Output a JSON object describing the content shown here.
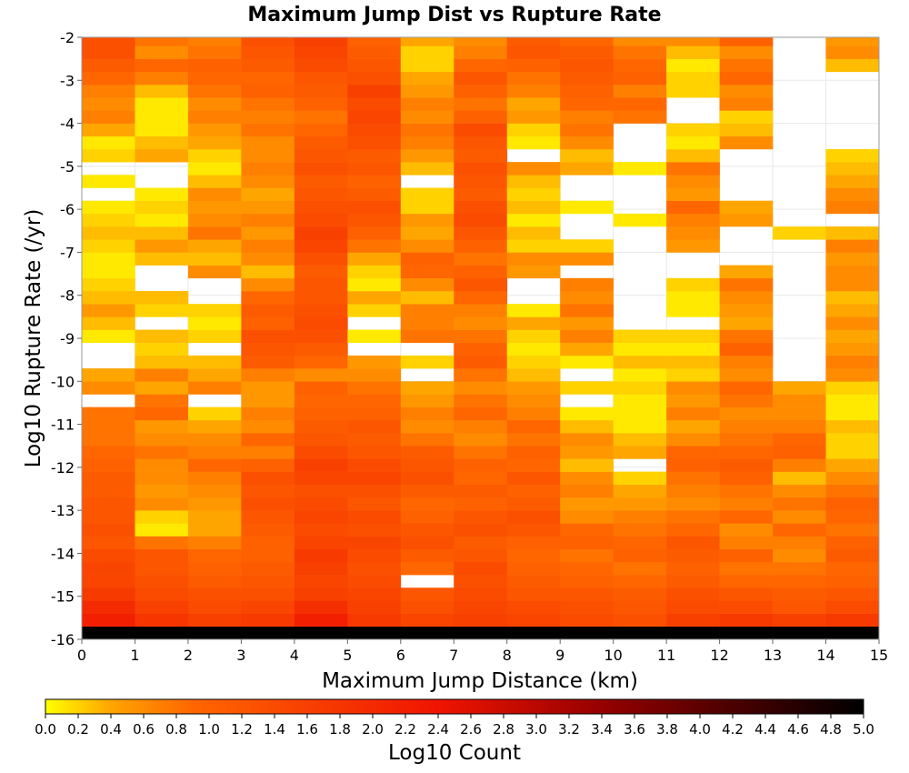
{
  "chart_data": {
    "type": "heatmap",
    "title": "Maximum Jump Dist vs Rupture Rate",
    "xlabel": "Maximum Jump Distance (km)",
    "ylabel": "Log10 Rupture Rate (/yr)",
    "xlim": [
      0,
      15
    ],
    "ylim": [
      -16,
      -2
    ],
    "x_ticks": [
      "0",
      "1",
      "2",
      "3",
      "4",
      "5",
      "6",
      "7",
      "8",
      "9",
      "10",
      "11",
      "12",
      "13",
      "14",
      "15"
    ],
    "y_ticks": [
      "-2",
      "-3",
      "-4",
      "-5",
      "-6",
      "-7",
      "-8",
      "-9",
      "-10",
      "-11",
      "-12",
      "-13",
      "-14",
      "-15",
      "-16"
    ],
    "x_bin_width": 1,
    "y_bin_height": 0.3,
    "y_bins_start": -16,
    "colorbar": {
      "label": "Log10 Count",
      "range": [
        0,
        5
      ],
      "ticks": [
        "0.0",
        "0.2",
        "0.4",
        "0.6",
        "0.8",
        "1.0",
        "1.2",
        "1.4",
        "1.6",
        "1.8",
        "2.0",
        "2.2",
        "2.4",
        "2.6",
        "2.8",
        "3.0",
        "3.2",
        "3.4",
        "3.6",
        "3.8",
        "4.0",
        "4.2",
        "4.4",
        "4.6",
        "4.8",
        "5.0"
      ]
    },
    "grid": true,
    "columns": [
      [
        5.0,
        2.2,
        2.0,
        1.7,
        1.5,
        1.5,
        1.4,
        1.2,
        1.3,
        1.2,
        1.2,
        1.1,
        1.1,
        1.0,
        0.9,
        0.8,
        0.8,
        0.8,
        null,
        0.6,
        0.4,
        null,
        null,
        0.1,
        0.3,
        0.5,
        0.3,
        0.2,
        0.1,
        0.1,
        0.2,
        0.3,
        0.2,
        0.1,
        null,
        0.1,
        null,
        0.2,
        0.1,
        0.4,
        0.7,
        0.6,
        0.7,
        0.9,
        1.1,
        1.3,
        1.3,
        1.2,
        1.3,
        1.4,
        1.2,
        1.3,
        1.1,
        0.9,
        0.6,
        0.4,
        0.3
      ],
      [
        5.0,
        1.8,
        1.6,
        1.4,
        1.3,
        1.2,
        1.2,
        0.8,
        0.1,
        0.2,
        0.6,
        0.5,
        0.6,
        0.6,
        0.8,
        0.6,
        0.5,
        0.9,
        0.8,
        0.4,
        0.7,
        0.3,
        0.2,
        0.3,
        null,
        0.2,
        0.3,
        null,
        null,
        0.3,
        0.5,
        0.3,
        0.1,
        0.2,
        0.1,
        null,
        null,
        0.4,
        0.3,
        0.1,
        0.1,
        0.1,
        0.3,
        0.7,
        0.9,
        0.6,
        0.8,
        0.8,
        0.9,
        1.0,
        0.7,
        0.9,
        0.8,
        0.9,
        0.7,
        0.6,
        0.6
      ],
      [
        5.0,
        1.6,
        1.4,
        1.3,
        1.1,
        1.0,
        0.9,
        0.7,
        0.4,
        0.4,
        0.5,
        0.6,
        0.7,
        0.9,
        0.7,
        0.6,
        0.4,
        0.2,
        null,
        0.7,
        0.4,
        0.3,
        null,
        0.2,
        0.1,
        0.2,
        null,
        null,
        0.6,
        0.3,
        0.4,
        0.8,
        0.6,
        0.5,
        0.6,
        0.3,
        0.1,
        0.2,
        0.4,
        0.5,
        0.7,
        0.6,
        0.8,
        0.9,
        1.0,
        0.8,
        0.7,
        0.9,
        1.0,
        1.1,
        0.9,
        0.8,
        1.0,
        1.0,
        0.7,
        0.7,
        0.7
      ],
      [
        5.0,
        1.7,
        1.5,
        1.3,
        1.2,
        1.1,
        1.0,
        1.0,
        1.1,
        1.2,
        1.3,
        1.2,
        1.3,
        1.0,
        0.7,
        0.9,
        0.6,
        0.7,
        0.5,
        0.5,
        0.7,
        1.1,
        1.2,
        1.3,
        1.0,
        1.1,
        0.9,
        0.6,
        0.3,
        0.6,
        0.7,
        0.5,
        0.7,
        0.5,
        0.4,
        0.6,
        0.7,
        0.6,
        0.6,
        0.8,
        0.7,
        0.8,
        1.0,
        0.9,
        1.1,
        1.2,
        1.3,
        1.4,
        1.2,
        1.2,
        1.3,
        1.0,
        1.1,
        1.2,
        0.8,
        0.8,
        0.7
      ],
      [
        5.0,
        2.2,
        1.9,
        1.6,
        1.5,
        1.6,
        1.7,
        1.5,
        1.4,
        1.5,
        1.4,
        1.3,
        1.5,
        1.6,
        1.4,
        1.2,
        1.1,
        1.0,
        0.9,
        1.0,
        0.6,
        0.9,
        1.1,
        1.3,
        1.4,
        1.3,
        1.2,
        1.2,
        1.1,
        1.3,
        1.5,
        1.6,
        1.4,
        1.3,
        1.2,
        1.1,
        1.3,
        1.2,
        1.1,
        0.9,
        0.8,
        1.0,
        1.1,
        1.2,
        1.4,
        1.5,
        1.6,
        1.4,
        1.5,
        1.3,
        1.2,
        1.4,
        1.6,
        1.5,
        0.1,
        0.6,
        0.4,
        0.2
      ],
      [
        5.0,
        1.7,
        1.6,
        1.5,
        1.4,
        1.3,
        1.4,
        1.5,
        1.3,
        1.4,
        1.2,
        1.3,
        1.5,
        1.4,
        1.2,
        1.1,
        1.2,
        1.0,
        0.9,
        0.8,
        0.6,
        0.5,
        null,
        0.1,
        null,
        0.2,
        0.4,
        0.1,
        0.2,
        0.4,
        0.8,
        1.0,
        1.2,
        1.3,
        1.1,
        1.0,
        1.2,
        1.1,
        1.3,
        1.4,
        1.5,
        1.4,
        1.6,
        1.3,
        1.2,
        1.1,
        1.0,
        1.0,
        1.1,
        0.8,
        0.6,
        0.5,
        0.6,
        0.3,
        0.2
      ],
      [
        5.0,
        1.5,
        1.3,
        1.2,
        null,
        0.9,
        1.1,
        1.3,
        1.2,
        1.0,
        0.9,
        1.1,
        1.3,
        1.2,
        1.1,
        0.8,
        0.6,
        0.7,
        0.5,
        0.4,
        null,
        0.2,
        null,
        0.8,
        0.7,
        0.7,
        0.3,
        0.6,
        0.9,
        1.0,
        0.6,
        0.4,
        0.5,
        0.2,
        0.2,
        null,
        0.3,
        0.5,
        0.7,
        0.8,
        0.6,
        0.7,
        0.5,
        0.4,
        0.2,
        0.2,
        0.4,
        0.3,
        0.5,
        0.7,
        0.9,
        0.8,
        1.0,
        1.1,
        0.9,
        1.2,
        1.2
      ],
      [
        5.0,
        1.6,
        1.5,
        1.4,
        1.3,
        1.4,
        1.2,
        1.1,
        1.3,
        1.2,
        1.0,
        1.1,
        0.9,
        1.0,
        0.8,
        0.6,
        0.7,
        0.9,
        0.8,
        0.6,
        0.8,
        1.1,
        1.0,
        0.8,
        0.6,
        0.7,
        0.9,
        1.2,
        1.0,
        0.8,
        1.0,
        1.2,
        1.4,
        1.3,
        1.1,
        1.2,
        1.3,
        1.1,
        1.2,
        1.4,
        1.0,
        0.8,
        1.0,
        1.2,
        0.9,
        0.7,
        0.6,
        0.8,
        0.4,
        0.2,
        0.3,
        0.8,
        0.7,
        0.8,
        null,
        null,
        null
      ],
      [
        5.0,
        1.5,
        1.4,
        1.2,
        1.1,
        1.0,
        0.9,
        1.0,
        1.2,
        1.3,
        1.1,
        1.0,
        1.2,
        0.9,
        1.0,
        0.8,
        0.9,
        0.7,
        0.6,
        0.5,
        0.3,
        0.2,
        0.1,
        0.2,
        0.4,
        0.1,
        null,
        null,
        0.5,
        0.6,
        0.2,
        0.3,
        0.1,
        0.3,
        0.2,
        0.3,
        0.6,
        null,
        0.1,
        0.2,
        0.5,
        0.4,
        0.7,
        0.8,
        1.0,
        1.2,
        1.1,
        1.0,
        1.3,
        1.5,
        0.6,
        0.4,
        0.2,
        0.1,
        null,
        null
      ],
      [
        5.0,
        1.4,
        1.3,
        1.2,
        1.0,
        0.9,
        0.8,
        1.0,
        0.9,
        0.6,
        0.5,
        0.7,
        0.6,
        0.3,
        0.5,
        0.6,
        0.3,
        0.1,
        null,
        0.2,
        null,
        0.1,
        0.4,
        0.7,
        0.5,
        0.8,
        0.6,
        0.7,
        null,
        0.6,
        0.2,
        null,
        null,
        0.1,
        null,
        null,
        0.4,
        0.3,
        0.6,
        0.8,
        0.7,
        0.9,
        1.0,
        1.1,
        1.2,
        1.1,
        0.9,
        1.0,
        1.2,
        0.6,
        0.5,
        0.4
      ],
      [
        5.0,
        1.3,
        1.2,
        1.1,
        0.9,
        0.8,
        1.0,
        0.9,
        0.8,
        0.7,
        0.5,
        0.4,
        0.2,
        null,
        0.4,
        0.3,
        0.1,
        0.1,
        0.1,
        0.2,
        0.1,
        0.3,
        0.1,
        0.2,
        null,
        null,
        null,
        null,
        null,
        null,
        null,
        null,
        0.1,
        null,
        null,
        null,
        0.1,
        null,
        null,
        null,
        0.8,
        0.9,
        0.7,
        1.0,
        0.9,
        0.8,
        0.6,
        0.9,
        0.8,
        0.4,
        0.4,
        0.6,
        0.5,
        0.6,
        0.4,
        0.4,
        0.3
      ],
      [
        5.0,
        1.6,
        1.4,
        1.3,
        1.1,
        1.0,
        1.1,
        1.2,
        0.9,
        0.8,
        0.6,
        0.7,
        0.8,
        1.0,
        0.9,
        0.6,
        0.4,
        0.7,
        0.5,
        0.6,
        0.2,
        0.3,
        0.1,
        0.2,
        null,
        0.1,
        0.1,
        0.2,
        null,
        null,
        0.5,
        0.6,
        0.7,
        0.9,
        0.5,
        0.6,
        0.8,
        0.3,
        0.1,
        0.2,
        null,
        null,
        0.2,
        0.2,
        0.1,
        0.3,
        0.6,
        0.3,
        null,
        0.4,
        1.0,
        1.1,
        1.2,
        1.0,
        0.8,
        0.1,
        null,
        0.2
      ],
      [
        5.0,
        1.7,
        1.4,
        1.2,
        0.9,
        0.8,
        1.0,
        0.7,
        0.6,
        0.9,
        0.7,
        0.8,
        1.0,
        1.1,
        0.9,
        0.8,
        0.7,
        0.6,
        0.8,
        0.9,
        0.6,
        0.7,
        1.0,
        0.8,
        0.4,
        0.5,
        0.6,
        0.8,
        0.4,
        null,
        null,
        null,
        0.5,
        0.4,
        null,
        null,
        null,
        null,
        0.6,
        0.3,
        0.2,
        0.7,
        0.6,
        0.9,
        0.8,
        0.6,
        1.0,
        1.1,
        0.8,
        0.8,
        0.7,
        0.4,
        0.7,
        1.3,
        1.2,
        1.0,
        null
      ],
      [
        5.0,
        1.6,
        1.2,
        1.1,
        0.9,
        0.8,
        0.6,
        0.7,
        0.9,
        0.6,
        0.8,
        0.6,
        0.3,
        0.7,
        1.0,
        0.9,
        0.7,
        0.6,
        0.6,
        0.4,
        null,
        null,
        null,
        null,
        null,
        null,
        null,
        null,
        null,
        null,
        null,
        0.2,
        null,
        null,
        null,
        null,
        null,
        null,
        null,
        null,
        null,
        null,
        null,
        null,
        null,
        null,
        null,
        null,
        0.5,
        0.4,
        0.2,
        0.5,
        0.6,
        0.9,
        1.1,
        0.9,
        1.0,
        0.9,
        null,
        null,
        null
      ],
      [
        5.0,
        1.7,
        1.4,
        1.2,
        1.0,
        0.9,
        1.1,
        1.0,
        0.8,
        0.9,
        1.0,
        0.8,
        0.6,
        0.4,
        0.2,
        0.2,
        0.3,
        0.1,
        0.1,
        0.2,
        0.6,
        0.7,
        0.5,
        0.4,
        0.6,
        0.4,
        0.3,
        0.6,
        0.6,
        0.5,
        0.7,
        0.3,
        null,
        0.7,
        0.6,
        0.4,
        0.3,
        0.2,
        null,
        null,
        null,
        null,
        null,
        null,
        0.3,
        0.6,
        0.5,
        0.7,
        0.9,
        1.0,
        1.1,
        0.9,
        1.0,
        0.8,
        null,
        null,
        0.1
      ]
    ]
  }
}
